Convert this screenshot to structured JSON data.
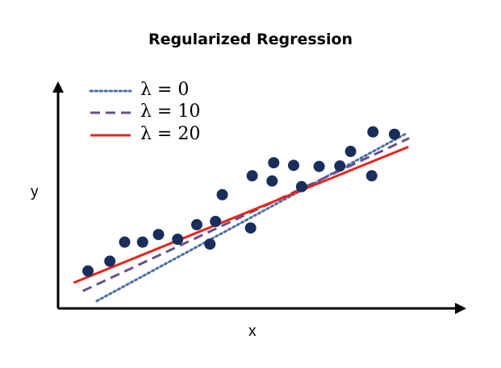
{
  "chart_data": {
    "type": "scatter",
    "title": "Regularized Regression",
    "xlabel": "x",
    "ylabel": "y",
    "xlim": [
      0,
      100
    ],
    "ylim": [
      0,
      100
    ],
    "grid": false,
    "legend_position": "top-left",
    "points": [
      {
        "x": 7.5,
        "y": 17.2
      },
      {
        "x": 13.0,
        "y": 21.7
      },
      {
        "x": 16.7,
        "y": 30.5
      },
      {
        "x": 21.2,
        "y": 30.5
      },
      {
        "x": 25.2,
        "y": 34.0
      },
      {
        "x": 30.0,
        "y": 31.8
      },
      {
        "x": 34.8,
        "y": 38.5
      },
      {
        "x": 38.1,
        "y": 29.6
      },
      {
        "x": 39.5,
        "y": 40.0
      },
      {
        "x": 41.2,
        "y": 52.3
      },
      {
        "x": 48.3,
        "y": 37.0
      },
      {
        "x": 48.7,
        "y": 61.0
      },
      {
        "x": 53.7,
        "y": 58.6
      },
      {
        "x": 54.1,
        "y": 67.0
      },
      {
        "x": 59.1,
        "y": 65.8
      },
      {
        "x": 61.1,
        "y": 56.0
      },
      {
        "x": 65.5,
        "y": 65.3
      },
      {
        "x": 70.7,
        "y": 65.5
      },
      {
        "x": 73.4,
        "y": 72.2
      },
      {
        "x": 78.7,
        "y": 61.0
      },
      {
        "x": 79.0,
        "y": 81.2
      },
      {
        "x": 84.4,
        "y": 80.1
      }
    ],
    "series": [
      {
        "name": "λ = 0",
        "style": "dotted",
        "color": "#4a6fa5",
        "x": [
          9.7,
          87.5
        ],
        "y": [
          3.4,
          80.6
        ]
      },
      {
        "name": "λ = 10",
        "style": "dashed",
        "color": "#6a4f8a",
        "x": [
          6.2,
          88.1
        ],
        "y": [
          8.0,
          78.3
        ]
      },
      {
        "name": "λ = 20",
        "style": "solid",
        "color": "#e8231d",
        "x": [
          3.9,
          87.9
        ],
        "y": [
          11.8,
          74.3
        ]
      }
    ],
    "marker_color": "#1a2e5c"
  }
}
